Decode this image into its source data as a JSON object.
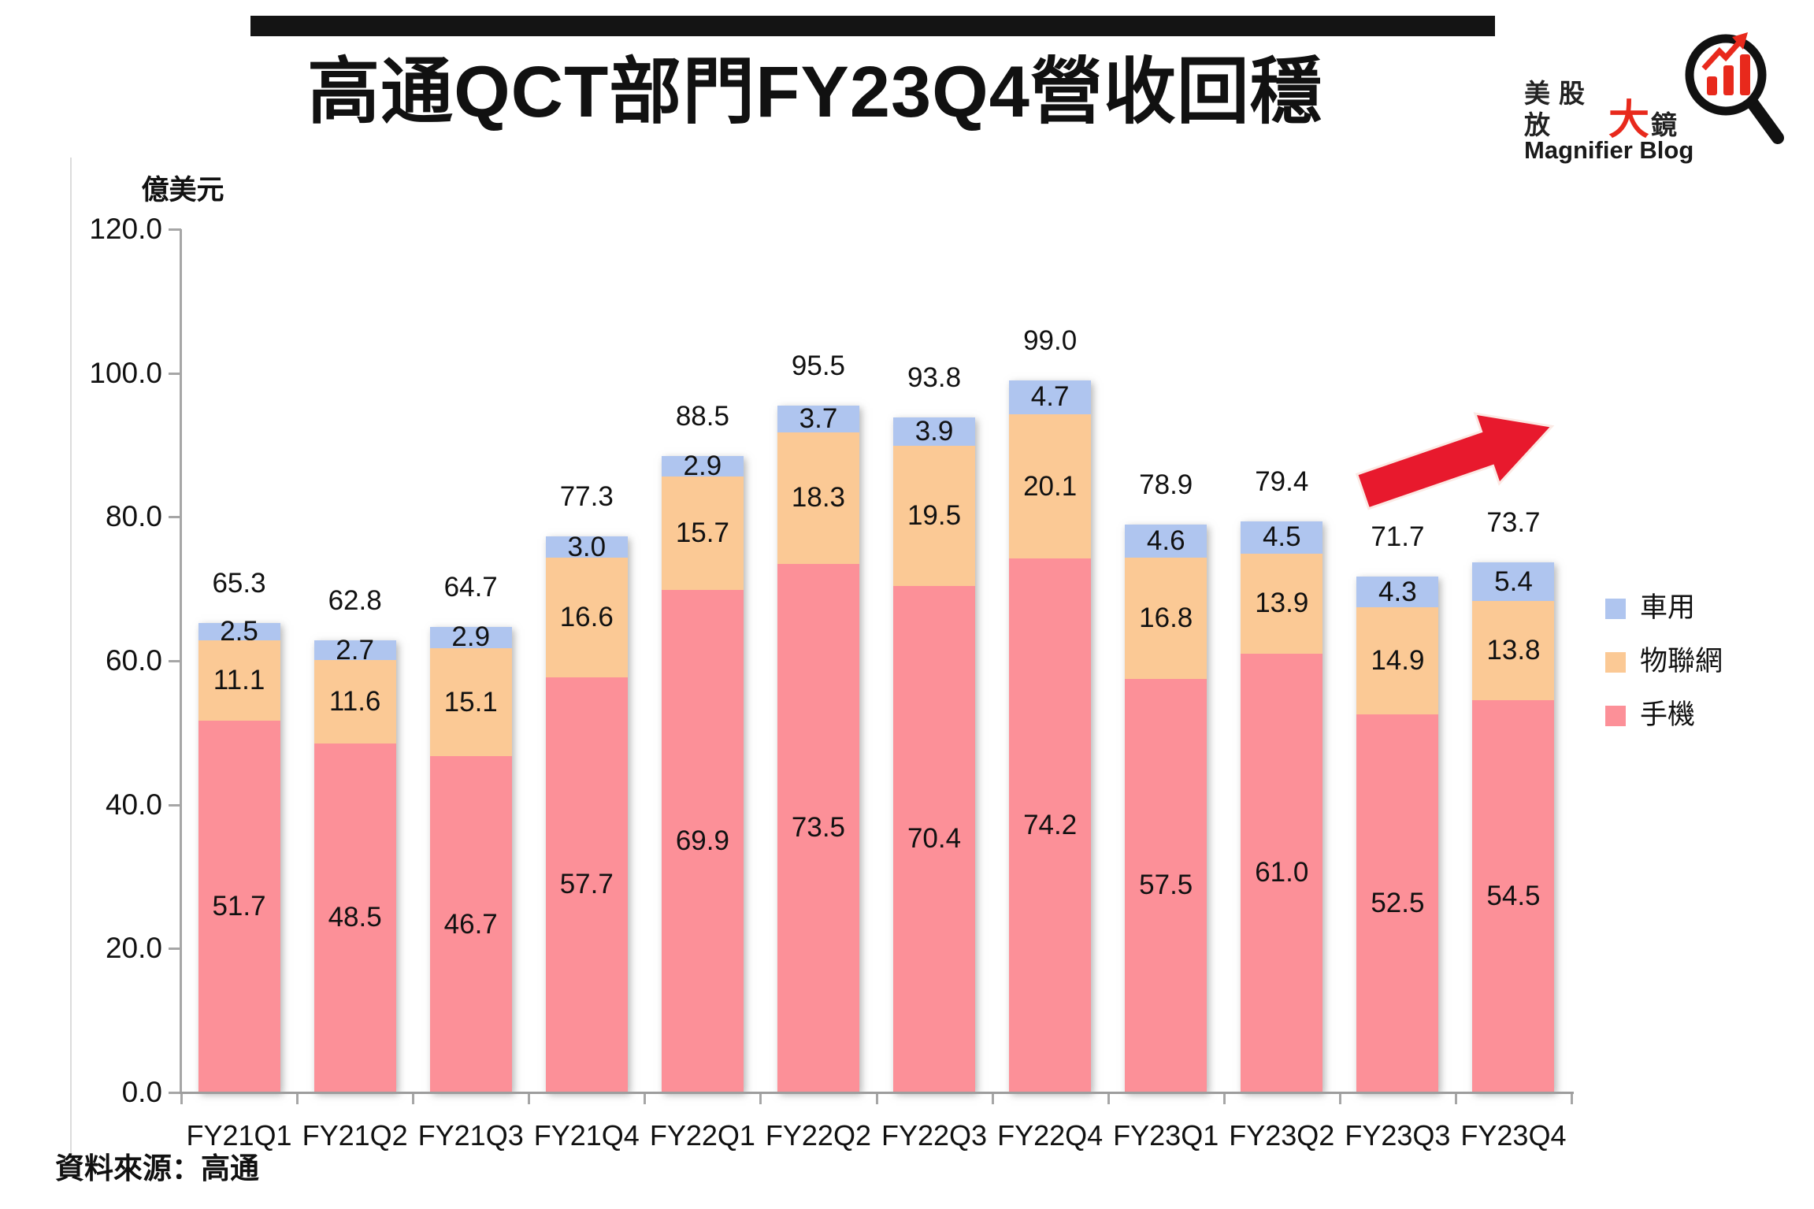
{
  "title": "高通QCT部門FY23Q4營收回穩",
  "logo": {
    "cn_prefix": "美股放",
    "cn_big": "大",
    "cn_suffix": "鏡",
    "en": "Magnifier Blog",
    "accent_color": "#e8291c"
  },
  "source_note": "資料來源：高通",
  "annotations": {
    "trend_arrow": "up-right",
    "arrow_color": "#e8192d"
  },
  "chart_data": {
    "type": "bar",
    "stacked": true,
    "title": "高通QCT部門FY23Q4營收回穩",
    "unit_label": "億美元",
    "xlabel": "",
    "ylabel": "億美元",
    "ylim": [
      0,
      120
    ],
    "grid": false,
    "legend_position": "right",
    "categories": [
      "FY21Q1",
      "FY21Q2",
      "FY21Q3",
      "FY21Q4",
      "FY22Q1",
      "FY22Q2",
      "FY22Q3",
      "FY22Q4",
      "FY23Q1",
      "FY23Q2",
      "FY23Q3",
      "FY23Q4"
    ],
    "series": [
      {
        "name": "手機",
        "color": "#fc9098",
        "values": [
          51.7,
          48.5,
          46.7,
          57.7,
          69.9,
          73.5,
          70.4,
          74.2,
          57.5,
          61.0,
          52.5,
          54.5
        ]
      },
      {
        "name": "物聯網",
        "color": "#fbc995",
        "values": [
          11.1,
          11.6,
          15.1,
          16.6,
          15.7,
          18.3,
          19.5,
          20.1,
          16.8,
          13.9,
          14.9,
          13.8
        ]
      },
      {
        "name": "車用",
        "color": "#afc5ef",
        "values": [
          2.5,
          2.7,
          2.9,
          3.0,
          2.9,
          3.7,
          3.9,
          4.7,
          4.6,
          4.5,
          4.3,
          5.4
        ]
      }
    ],
    "totals": [
      65.3,
      62.8,
      64.7,
      77.3,
      88.5,
      95.5,
      93.8,
      99.0,
      78.9,
      79.4,
      71.7,
      73.7
    ],
    "y_ticks": [
      "120.0",
      "100.0",
      "80.0",
      "60.0",
      "40.0",
      "20.0",
      "0.0"
    ],
    "legend": [
      "車用",
      "物聯網",
      "手機"
    ]
  }
}
